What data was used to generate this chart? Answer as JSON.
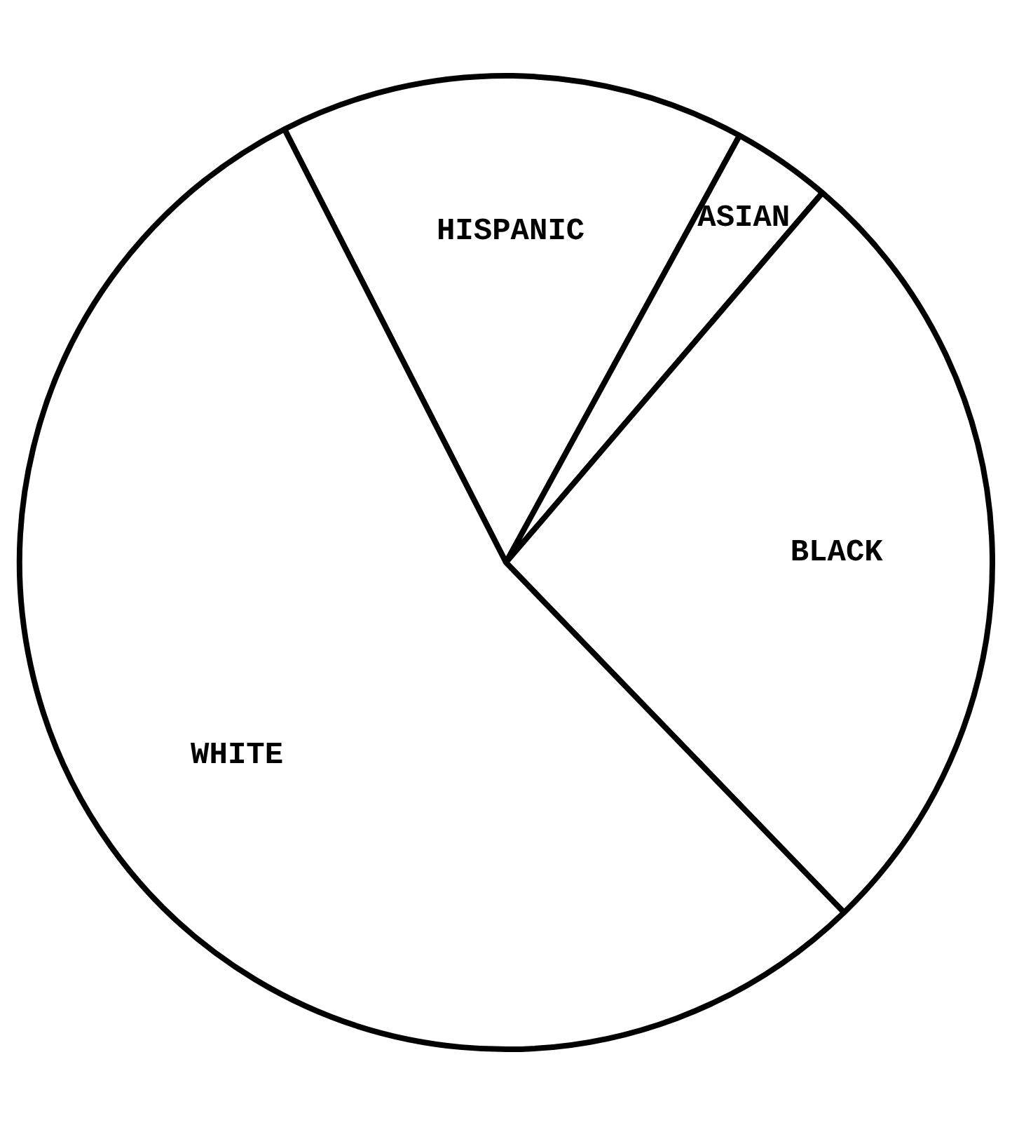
{
  "chart_data": {
    "type": "pie",
    "categories": [
      "HISPANIC",
      "ASIAN",
      "BLACK",
      "WHITE"
    ],
    "values": [
      15.5,
      3.3,
      26.5,
      54.7
    ],
    "colors": [
      "#ffffff",
      "#ffffff",
      "#ffffff",
      "#ffffff"
    ],
    "legend": false
  }
}
